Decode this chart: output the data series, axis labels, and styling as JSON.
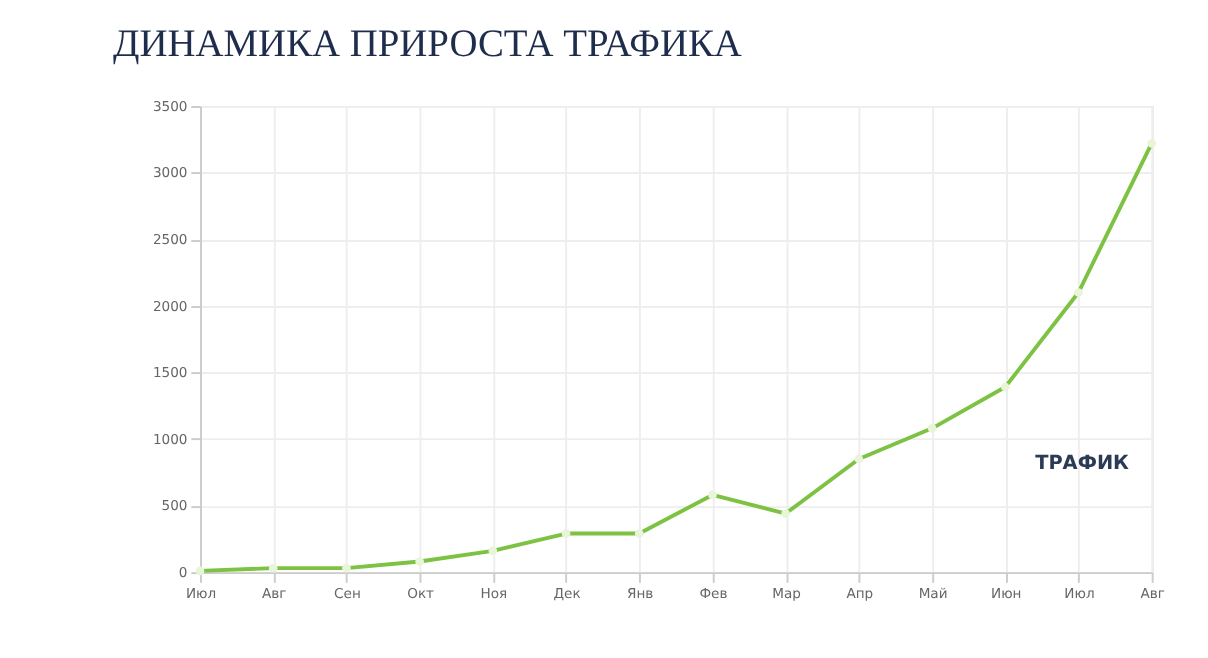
{
  "chart_data": {
    "type": "line",
    "title": "ДИНАМИКА ПРИРОСТА ТРАФИКА",
    "categories": [
      "Июл",
      "Авг",
      "Сен",
      "Окт",
      "Ноя",
      "Дек",
      "Янв",
      "Фев",
      "Мар",
      "Апр",
      "Май",
      "Июн",
      "Июл",
      "Авг"
    ],
    "series": [
      {
        "color": "#7dc242",
        "values": [
          10,
          30,
          30,
          80,
          160,
          290,
          290,
          580,
          440,
          850,
          1080,
          1390,
          2100,
          3220
        ]
      }
    ],
    "annotations": [
      "ТРАФИК"
    ],
    "ylim": [
      0,
      3500
    ],
    "yticks": [
      0,
      500,
      1000,
      1500,
      2000,
      2500,
      3000,
      3500
    ],
    "grid": true,
    "marker": "circle",
    "line_style": "solid"
  }
}
